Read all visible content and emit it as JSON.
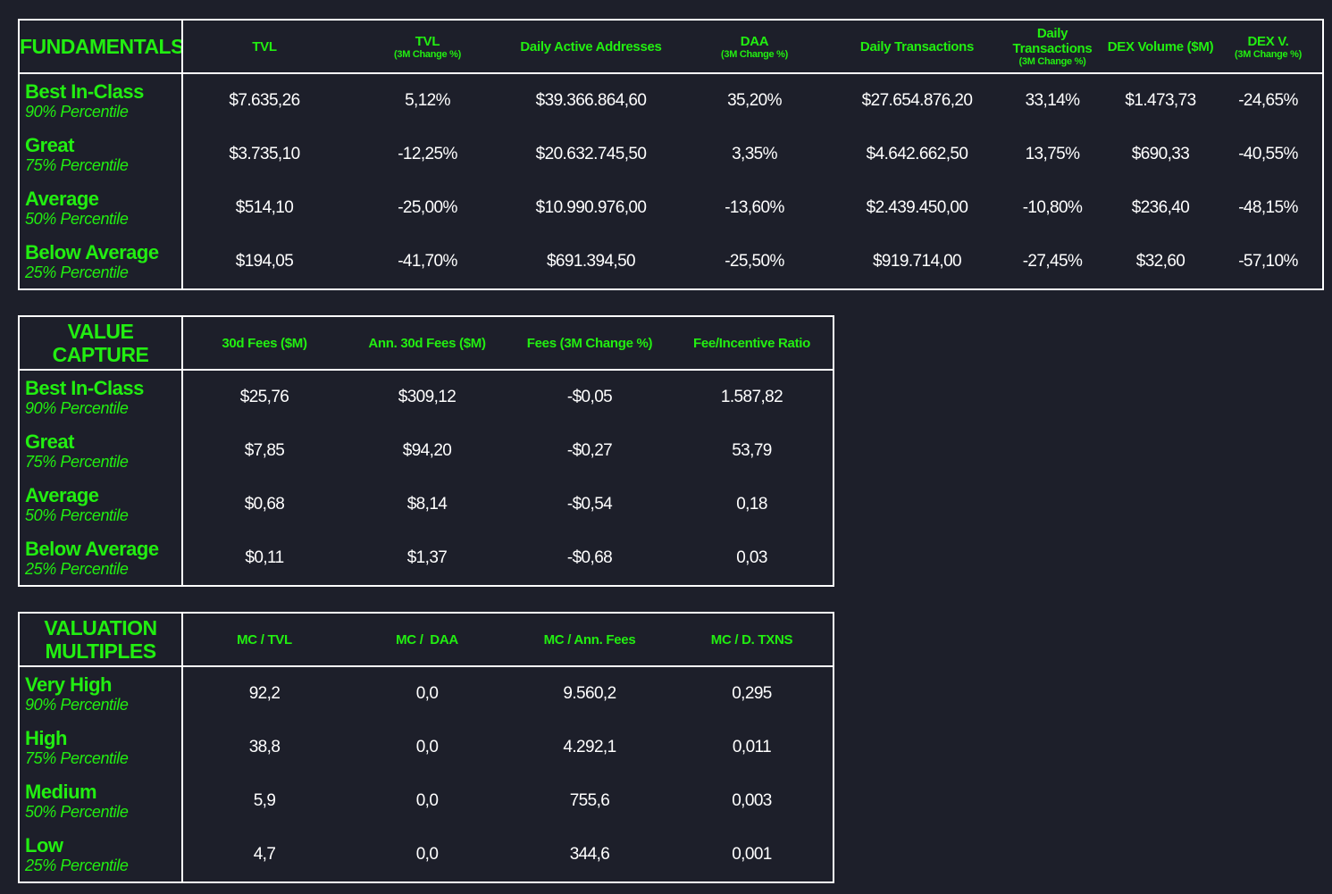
{
  "colors": {
    "background": "#1d1f2a",
    "accent_green": "#22ee11",
    "text": "#ffffff",
    "border": "#ffffff"
  },
  "fundamentals": {
    "title": "FUNDAMENTALS",
    "columns": [
      {
        "label": "TVL",
        "sub": ""
      },
      {
        "label": "TVL",
        "sub": "(3M Change %)"
      },
      {
        "label": "Daily Active Addresses",
        "sub": ""
      },
      {
        "label": "DAA",
        "sub": "(3M Change %)"
      },
      {
        "label": "Daily Transactions",
        "sub": ""
      },
      {
        "label": "Daily Transactions",
        "sub": "(3M Change %)"
      },
      {
        "label": "DEX Volume ($M)",
        "sub": ""
      },
      {
        "label": "DEX V.",
        "sub": "(3M Change %)"
      }
    ],
    "rows": [
      {
        "label": "Best In-Class",
        "percentile": "90% Percentile",
        "values": [
          "$7.635,26",
          "5,12%",
          "$39.366.864,60",
          "35,20%",
          "$27.654.876,20",
          "33,14%",
          "$1.473,73",
          "-24,65%"
        ]
      },
      {
        "label": "Great",
        "percentile": "75% Percentile",
        "values": [
          "$3.735,10",
          "-12,25%",
          "$20.632.745,50",
          "3,35%",
          "$4.642.662,50",
          "13,75%",
          "$690,33",
          "-40,55%"
        ]
      },
      {
        "label": "Average",
        "percentile": "50% Percentile",
        "values": [
          "$514,10",
          "-25,00%",
          "$10.990.976,00",
          "-13,60%",
          "$2.439.450,00",
          "-10,80%",
          "$236,40",
          "-48,15%"
        ]
      },
      {
        "label": "Below Average",
        "percentile": "25% Percentile",
        "values": [
          "$194,05",
          "-41,70%",
          "$691.394,50",
          "-25,50%",
          "$919.714,00",
          "-27,45%",
          "$32,60",
          "-57,10%"
        ]
      }
    ]
  },
  "value_capture": {
    "title": "VALUE CAPTURE",
    "columns": [
      {
        "label": "30d Fees ($M)",
        "sub": ""
      },
      {
        "label": "Ann. 30d Fees ($M)",
        "sub": ""
      },
      {
        "label": "Fees (3M Change %)",
        "sub": ""
      },
      {
        "label": "Fee/Incentive Ratio",
        "sub": ""
      }
    ],
    "rows": [
      {
        "label": "Best In-Class",
        "percentile": "90% Percentile",
        "values": [
          "$25,76",
          "$309,12",
          "-$0,05",
          "1.587,82"
        ]
      },
      {
        "label": "Great",
        "percentile": "75% Percentile",
        "values": [
          "$7,85",
          "$94,20",
          "-$0,27",
          "53,79"
        ]
      },
      {
        "label": "Average",
        "percentile": "50% Percentile",
        "values": [
          "$0,68",
          "$8,14",
          "-$0,54",
          "0,18"
        ]
      },
      {
        "label": "Below Average",
        "percentile": "25% Percentile",
        "values": [
          "$0,11",
          "$1,37",
          "-$0,68",
          "0,03"
        ]
      }
    ]
  },
  "valuation_multiples": {
    "title": "VALUATION MULTIPLES",
    "columns": [
      {
        "label": "MC / TVL",
        "sub": ""
      },
      {
        "label": "MC /  DAA",
        "sub": ""
      },
      {
        "label": "MC / Ann. Fees",
        "sub": ""
      },
      {
        "label": "MC / D. TXNS",
        "sub": ""
      }
    ],
    "rows": [
      {
        "label": "Very High",
        "percentile": "90% Percentile",
        "values": [
          "92,2",
          "0,0",
          "9.560,2",
          "0,295"
        ]
      },
      {
        "label": "High",
        "percentile": "75% Percentile",
        "values": [
          "38,8",
          "0,0",
          "4.292,1",
          "0,011"
        ]
      },
      {
        "label": "Medium",
        "percentile": "50% Percentile",
        "values": [
          "5,9",
          "0,0",
          "755,6",
          "0,003"
        ]
      },
      {
        "label": "Low",
        "percentile": "25% Percentile",
        "values": [
          "4,7",
          "0,0",
          "344,6",
          "0,001"
        ]
      }
    ]
  }
}
